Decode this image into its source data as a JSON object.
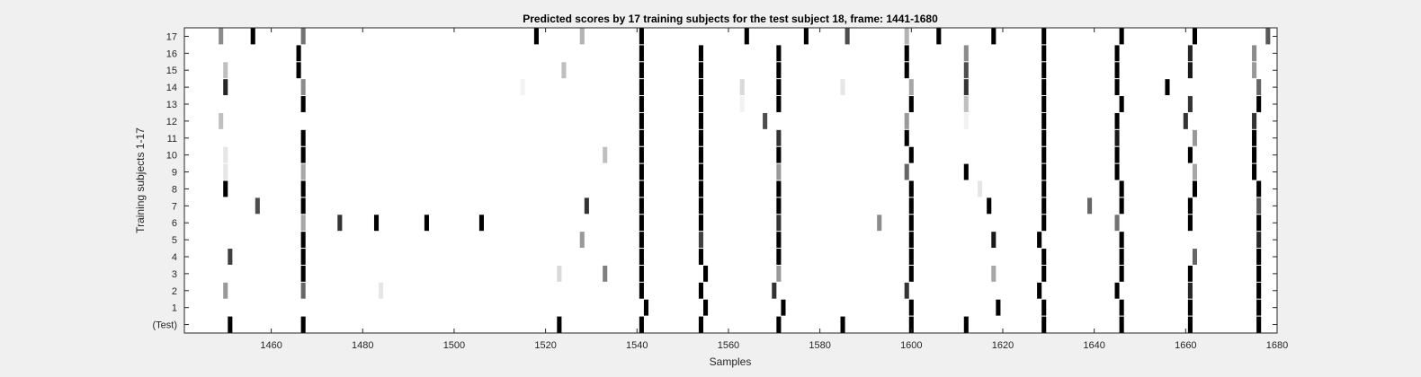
{
  "chart_data": {
    "type": "heatmap",
    "title": "Predicted scores by 17 training subjects for the test subject 18, frame: 1441-1680",
    "xlabel": "Samples",
    "ylabel": "Training subjects 1-17",
    "xlim": [
      1441,
      1680
    ],
    "x_ticks": [
      1460,
      1480,
      1500,
      1520,
      1540,
      1560,
      1580,
      1600,
      1620,
      1640,
      1660,
      1680
    ],
    "y_tick_labels": [
      "(Test)",
      "1",
      "2",
      "3",
      "4",
      "5",
      "6",
      "7",
      "8",
      "9",
      "10",
      "11",
      "12",
      "13",
      "14",
      "15",
      "16",
      "17"
    ],
    "colormap": "grayscale: 0 = white, 1 = black",
    "grid": false,
    "rows": [
      {
        "label": "(Test)",
        "marks": [
          [
            1451,
            1.0
          ],
          [
            1467,
            1.0
          ],
          [
            1523,
            1.0
          ],
          [
            1541,
            1.0
          ],
          [
            1554,
            1.0
          ],
          [
            1571,
            1.0
          ],
          [
            1585,
            1.0
          ],
          [
            1600,
            1.0
          ],
          [
            1612,
            1.0
          ],
          [
            1629,
            1.0
          ],
          [
            1646,
            1.0
          ],
          [
            1661,
            1.0
          ],
          [
            1676,
            1.0
          ]
        ]
      },
      {
        "label": "1",
        "marks": [
          [
            1542,
            1.0
          ],
          [
            1555,
            1.0
          ],
          [
            1572,
            1.0
          ],
          [
            1600,
            1.0
          ],
          [
            1619,
            1.0
          ],
          [
            1629,
            1.0
          ],
          [
            1646,
            1.0
          ],
          [
            1661,
            1.0
          ],
          [
            1676,
            1.0
          ]
        ]
      },
      {
        "label": "2",
        "marks": [
          [
            1450,
            0.4
          ],
          [
            1467,
            0.6
          ],
          [
            1484,
            0.1
          ],
          [
            1541,
            1.0
          ],
          [
            1554,
            1.0
          ],
          [
            1570,
            0.8
          ],
          [
            1599,
            0.8
          ],
          [
            1628,
            1.0
          ],
          [
            1645,
            1.0
          ],
          [
            1661,
            0.85
          ],
          [
            1676,
            1.0
          ]
        ]
      },
      {
        "label": "3",
        "marks": [
          [
            1467,
            1.0
          ],
          [
            1523,
            0.15
          ],
          [
            1533,
            0.5
          ],
          [
            1541,
            1.0
          ],
          [
            1555,
            1.0
          ],
          [
            1571,
            0.4
          ],
          [
            1600,
            1.0
          ],
          [
            1618,
            0.35
          ],
          [
            1629,
            1.0
          ],
          [
            1646,
            1.0
          ],
          [
            1661,
            1.0
          ],
          [
            1676,
            1.0
          ]
        ]
      },
      {
        "label": "4",
        "marks": [
          [
            1451,
            0.75
          ],
          [
            1467,
            1.0
          ],
          [
            1541,
            1.0
          ],
          [
            1554,
            1.0
          ],
          [
            1571,
            1.0
          ],
          [
            1600,
            1.0
          ],
          [
            1629,
            1.0
          ],
          [
            1646,
            1.0
          ],
          [
            1662,
            0.6
          ],
          [
            1676,
            1.0
          ]
        ]
      },
      {
        "label": "5",
        "marks": [
          [
            1467,
            1.0
          ],
          [
            1528,
            0.4
          ],
          [
            1541,
            1.0
          ],
          [
            1554,
            0.75
          ],
          [
            1571,
            1.0
          ],
          [
            1600,
            1.0
          ],
          [
            1618,
            0.9
          ],
          [
            1628,
            1.0
          ],
          [
            1646,
            1.0
          ],
          [
            1676,
            0.85
          ]
        ]
      },
      {
        "label": "6",
        "marks": [
          [
            1467,
            0.35
          ],
          [
            1475,
            0.8
          ],
          [
            1483,
            1.0
          ],
          [
            1494,
            1.0
          ],
          [
            1506,
            1.0
          ],
          [
            1541,
            1.0
          ],
          [
            1554,
            1.0
          ],
          [
            1571,
            0.8
          ],
          [
            1593,
            0.45
          ],
          [
            1600,
            1.0
          ],
          [
            1629,
            1.0
          ],
          [
            1645,
            0.55
          ],
          [
            1661,
            1.0
          ],
          [
            1676,
            1.0
          ]
        ]
      },
      {
        "label": "7",
        "marks": [
          [
            1457,
            0.7
          ],
          [
            1467,
            1.0
          ],
          [
            1529,
            0.8
          ],
          [
            1541,
            1.0
          ],
          [
            1554,
            1.0
          ],
          [
            1571,
            1.0
          ],
          [
            1600,
            1.0
          ],
          [
            1617,
            1.0
          ],
          [
            1629,
            1.0
          ],
          [
            1639,
            0.6
          ],
          [
            1646,
            1.0
          ],
          [
            1661,
            1.0
          ],
          [
            1676,
            0.65
          ]
        ]
      },
      {
        "label": "8",
        "marks": [
          [
            1450,
            1.0
          ],
          [
            1467,
            1.0
          ],
          [
            1541,
            1.0
          ],
          [
            1554,
            1.0
          ],
          [
            1571,
            1.0
          ],
          [
            1600,
            1.0
          ],
          [
            1615,
            0.1
          ],
          [
            1629,
            1.0
          ],
          [
            1646,
            1.0
          ],
          [
            1662,
            1.0
          ],
          [
            1676,
            1.0
          ]
        ]
      },
      {
        "label": "9",
        "marks": [
          [
            1450,
            0.1
          ],
          [
            1467,
            0.35
          ],
          [
            1541,
            1.0
          ],
          [
            1554,
            1.0
          ],
          [
            1571,
            0.4
          ],
          [
            1599,
            0.6
          ],
          [
            1612,
            1.0
          ],
          [
            1629,
            1.0
          ],
          [
            1645,
            1.0
          ],
          [
            1662,
            0.35
          ],
          [
            1675,
            1.0
          ]
        ]
      },
      {
        "label": "10",
        "marks": [
          [
            1450,
            0.1
          ],
          [
            1467,
            1.0
          ],
          [
            1533,
            0.25
          ],
          [
            1541,
            1.0
          ],
          [
            1554,
            1.0
          ],
          [
            1571,
            1.0
          ],
          [
            1600,
            1.0
          ],
          [
            1629,
            1.0
          ],
          [
            1645,
            1.0
          ],
          [
            1661,
            1.0
          ],
          [
            1675,
            1.0
          ]
        ]
      },
      {
        "label": "11",
        "marks": [
          [
            1467,
            1.0
          ],
          [
            1541,
            1.0
          ],
          [
            1554,
            1.0
          ],
          [
            1571,
            0.8
          ],
          [
            1599,
            1.0
          ],
          [
            1629,
            1.0
          ],
          [
            1645,
            0.9
          ],
          [
            1662,
            0.4
          ],
          [
            1675,
            1.0
          ]
        ]
      },
      {
        "label": "12",
        "marks": [
          [
            1449,
            0.25
          ],
          [
            1541,
            1.0
          ],
          [
            1554,
            1.0
          ],
          [
            1568,
            0.7
          ],
          [
            1599,
            0.4
          ],
          [
            1612,
            0.05
          ],
          [
            1629,
            1.0
          ],
          [
            1645,
            1.0
          ],
          [
            1660,
            0.8
          ],
          [
            1675,
            0.8
          ]
        ]
      },
      {
        "label": "13",
        "marks": [
          [
            1467,
            1.0
          ],
          [
            1541,
            1.0
          ],
          [
            1554,
            1.0
          ],
          [
            1563,
            0.05
          ],
          [
            1571,
            1.0
          ],
          [
            1600,
            1.0
          ],
          [
            1612,
            0.25
          ],
          [
            1629,
            1.0
          ],
          [
            1646,
            1.0
          ],
          [
            1661,
            0.8
          ],
          [
            1676,
            1.0
          ]
        ]
      },
      {
        "label": "14",
        "marks": [
          [
            1450,
            0.85
          ],
          [
            1467,
            0.45
          ],
          [
            1515,
            0.05
          ],
          [
            1541,
            1.0
          ],
          [
            1554,
            1.0
          ],
          [
            1563,
            0.15
          ],
          [
            1571,
            1.0
          ],
          [
            1585,
            0.1
          ],
          [
            1600,
            0.35
          ],
          [
            1612,
            0.8
          ],
          [
            1629,
            1.0
          ],
          [
            1645,
            1.0
          ],
          [
            1656,
            1.0
          ],
          [
            1676,
            0.6
          ]
        ]
      },
      {
        "label": "15",
        "marks": [
          [
            1450,
            0.25
          ],
          [
            1466,
            1.0
          ],
          [
            1524,
            0.25
          ],
          [
            1541,
            1.0
          ],
          [
            1554,
            1.0
          ],
          [
            1571,
            1.0
          ],
          [
            1599,
            1.0
          ],
          [
            1612,
            0.7
          ],
          [
            1629,
            1.0
          ],
          [
            1645,
            1.0
          ],
          [
            1661,
            0.9
          ],
          [
            1675,
            0.4
          ]
        ]
      },
      {
        "label": "16",
        "marks": [
          [
            1466,
            1.0
          ],
          [
            1541,
            1.0
          ],
          [
            1554,
            1.0
          ],
          [
            1571,
            1.0
          ],
          [
            1599,
            1.0
          ],
          [
            1612,
            0.45
          ],
          [
            1629,
            1.0
          ],
          [
            1645,
            1.0
          ],
          [
            1661,
            0.85
          ],
          [
            1675,
            0.45
          ]
        ]
      },
      {
        "label": "17",
        "marks": [
          [
            1449,
            0.45
          ],
          [
            1456,
            1.0
          ],
          [
            1467,
            0.55
          ],
          [
            1518,
            1.0
          ],
          [
            1528,
            0.3
          ],
          [
            1541,
            1.0
          ],
          [
            1564,
            1.0
          ],
          [
            1577,
            1.0
          ],
          [
            1586,
            0.7
          ],
          [
            1599,
            0.3
          ],
          [
            1606,
            1.0
          ],
          [
            1618,
            1.0
          ],
          [
            1629,
            1.0
          ],
          [
            1646,
            1.0
          ],
          [
            1662,
            1.0
          ],
          [
            1678,
            0.65
          ]
        ]
      }
    ]
  }
}
